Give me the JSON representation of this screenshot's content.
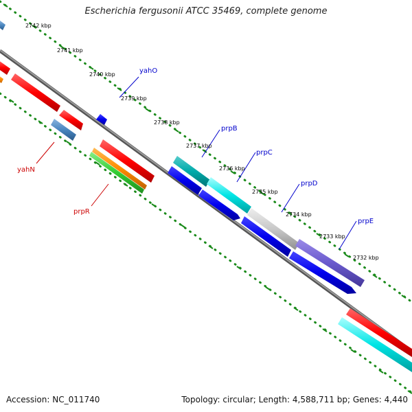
{
  "title": "Escherichia fergusonii ATCC 35469, complete genome",
  "footer": {
    "accession": "Accession: NC_011740",
    "topology": "Topology: circular; Length: 4,588,711 bp; Genes: 4,440"
  },
  "scale_labels": [
    "2742 kbp",
    "2741 kbp",
    "2740 kbp",
    "2739 kbp",
    "2738 kbp",
    "2737 kbp",
    "2736 kbp",
    "2735 kbp",
    "2734 kbp",
    "2733 kbp",
    "2732 kbp"
  ],
  "gene_labels": [
    {
      "name": "yahO",
      "color": "#0000cc"
    },
    {
      "name": "prpB",
      "color": "#0000cc"
    },
    {
      "name": "prpC",
      "color": "#0000cc"
    },
    {
      "name": "prpD",
      "color": "#0000cc"
    },
    {
      "name": "prpE",
      "color": "#0000cc"
    },
    {
      "name": "yahN",
      "color": "#cc0000"
    },
    {
      "name": "prpR",
      "color": "#cc0000"
    }
  ],
  "colors": {
    "backbone": "#7a7a7a",
    "ticks": "#1a8a1a",
    "red": "#ff0000",
    "blue": "#0000ee",
    "cyan": "#00e5e5",
    "teal": "#00aaaa",
    "gray": "#c8c8c8",
    "purple": "#6a5acd",
    "steelblue": "#4a86c0",
    "orange": "#ff8c00",
    "green": "#33cc33"
  }
}
